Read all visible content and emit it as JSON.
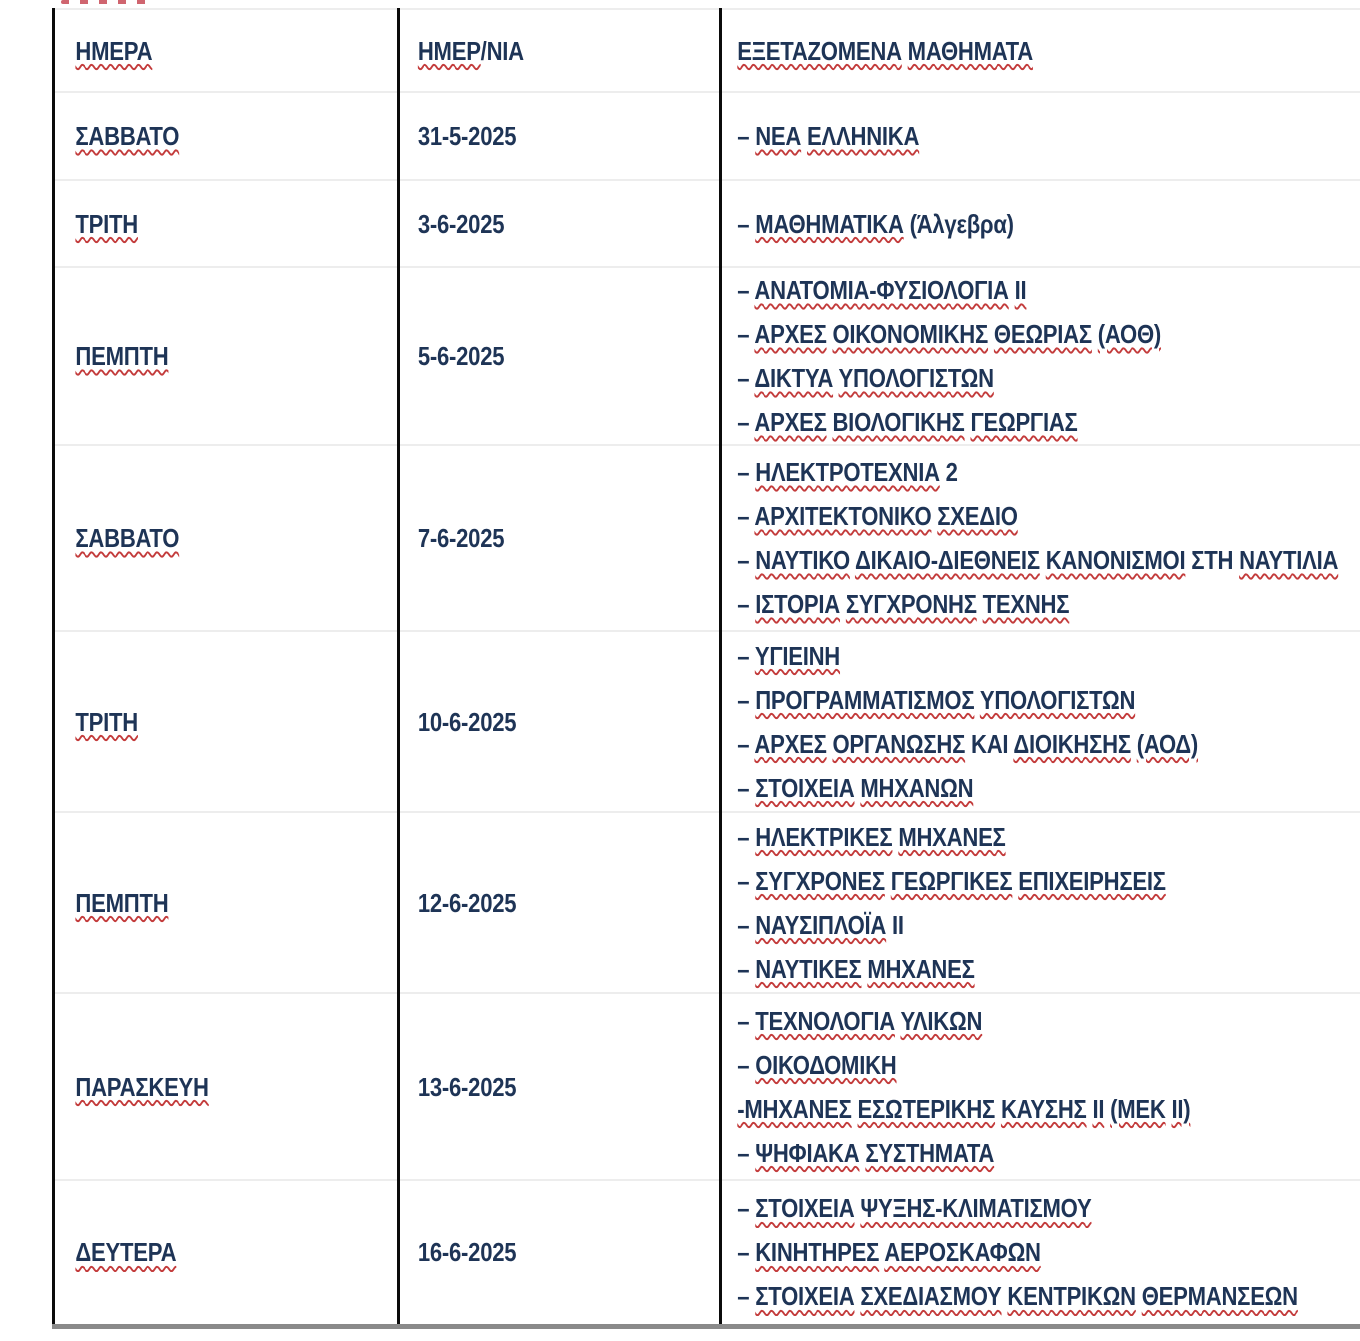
{
  "document": {
    "language": "el",
    "colors": {
      "text": "#1E3456",
      "misspell_underline": "#C33B3B",
      "grid_vertical": "#0B0B0B",
      "grid_horizontal": "#EDEDED",
      "table_bottom_border": "#8A8A8A",
      "page_background": "#FFFFFF"
    },
    "table": {
      "header": {
        "day": [
          [
            "ΗΜΕΡΑ",
            1
          ]
        ],
        "date": [
          [
            "ΗΜΕΡ",
            1
          ],
          [
            "/ΝΙΑ",
            0
          ]
        ],
        "subjects": [
          [
            "ΕΞΕΤΑΖΟΜΕΝΑ ΜΑΘΗΜΑΤΑ",
            1
          ]
        ]
      },
      "rows": [
        {
          "day": [
            [
              "ΣΑΒΒΑΤΟ",
              1
            ]
          ],
          "date": [
            [
              "31-5-2025",
              0
            ]
          ],
          "subjects": [
            [
              [
                "– ",
                0
              ],
              [
                "ΝΕΑ ΕΛΛΗΝΙΚΑ",
                1
              ]
            ]
          ]
        },
        {
          "day": [
            [
              "ΤΡΙΤΗ",
              1
            ]
          ],
          "date": [
            [
              "3-6-2025",
              0
            ]
          ],
          "subjects": [
            [
              [
                "– ",
                0
              ],
              [
                "ΜΑΘΗΜΑΤΙΚΑ",
                1
              ],
              [
                " (Άλγεβρα)",
                0
              ]
            ]
          ]
        },
        {
          "day": [
            [
              "ΠΕΜΠΤΗ",
              1
            ]
          ],
          "date": [
            [
              "5-6-2025",
              0
            ]
          ],
          "subjects": [
            [
              [
                "– ",
                0
              ],
              [
                "ΑΝΑΤΟΜΙΑ-ΦΥΣΙΟΛΟΓΙΑ ΙΙ",
                1
              ]
            ],
            [
              [
                "– ",
                0
              ],
              [
                "ΑΡΧΕΣ ΟΙΚΟΝΟΜΙΚΗΣ ΘΕΩΡΙΑΣ (ΑΟΘ)",
                1
              ]
            ],
            [
              [
                "– ",
                0
              ],
              [
                "ΔΙΚΤΥΑ ΥΠΟΛΟΓΙΣΤΩΝ",
                1
              ]
            ],
            [
              [
                "– ",
                0
              ],
              [
                "ΑΡΧΕΣ ΒΙΟΛΟΓΙΚΗΣ ΓΕΩΡΓΙΑΣ",
                1
              ]
            ]
          ]
        },
        {
          "day": [
            [
              "ΣΑΒΒΑΤΟ",
              1
            ]
          ],
          "date": [
            [
              "7-6-2025",
              0
            ]
          ],
          "subjects": [
            [
              [
                "– ",
                0
              ],
              [
                "ΗΛΕΚΤΡΟΤΕΧΝΙΑ",
                1
              ],
              [
                " 2",
                0
              ]
            ],
            [
              [
                "– ",
                0
              ],
              [
                "ΑΡΧΙΤΕΚΤΟΝΙΚΟ ΣΧΕΔΙΟ",
                1
              ]
            ],
            [
              [
                "– ",
                0
              ],
              [
                "ΝΑΥΤΙΚΟ ΔΙΚΑΙΟ-ΔΙΕΘΝΕΙΣ ΚΑΝΟΝΙΣΜΟΙ",
                1
              ],
              [
                " ΣΤΗ ",
                0
              ],
              [
                "ΝΑΥΤΙΛΙΑ",
                1
              ]
            ],
            [
              [
                "– ",
                0
              ],
              [
                "ΙΣΤΟΡΙΑ ΣΥΓΧΡΟΝΗΣ ΤΕΧΝΗΣ",
                1
              ]
            ]
          ]
        },
        {
          "day": [
            [
              "ΤΡΙΤΗ",
              1
            ]
          ],
          "date": [
            [
              "10-6-2025",
              0
            ]
          ],
          "subjects": [
            [
              [
                "– ",
                0
              ],
              [
                "ΥΓΙΕΙΝΗ",
                1
              ]
            ],
            [
              [
                "– ",
                0
              ],
              [
                "ΠΡΟΓΡΑΜΜΑΤΙΣΜΟΣ ΥΠΟΛΟΓΙΣΤΩΝ",
                1
              ]
            ],
            [
              [
                "– ",
                0
              ],
              [
                "ΑΡΧΕΣ ΟΡΓΑΝΩΣΗΣ",
                1
              ],
              [
                " ΚΑΙ ",
                0
              ],
              [
                "ΔΙΟΙΚΗΣΗΣ (ΑΟΔ)",
                1
              ]
            ],
            [
              [
                "– ",
                0
              ],
              [
                "ΣΤΟΙΧΕΙΑ ΜΗΧΑΝΩΝ",
                1
              ]
            ]
          ]
        },
        {
          "day": [
            [
              "ΠΕΜΠΤΗ",
              1
            ]
          ],
          "date": [
            [
              "12-6-2025",
              0
            ]
          ],
          "subjects": [
            [
              [
                "– ",
                0
              ],
              [
                "ΗΛΕΚΤΡΙΚΕΣ ΜΗΧΑΝΕΣ",
                1
              ]
            ],
            [
              [
                "– ",
                0
              ],
              [
                "ΣΥΓΧΡΟΝΕΣ ΓΕΩΡΓΙΚΕΣ ΕΠΙΧΕΙΡΗΣΕΙΣ",
                1
              ]
            ],
            [
              [
                "– ",
                0
              ],
              [
                "ΝΑΥΣΙΠΛΟΪΑ",
                1
              ],
              [
                " ΙΙ",
                0
              ]
            ],
            [
              [
                "– ",
                0
              ],
              [
                "ΝΑΥΤΙΚΕΣ ΜΗΧΑΝΕΣ",
                1
              ]
            ]
          ]
        },
        {
          "day": [
            [
              "ΠΑΡΑΣΚΕΥΗ",
              1
            ]
          ],
          "date": [
            [
              "13-6-2025",
              0
            ]
          ],
          "subjects": [
            [
              [
                "– ",
                0
              ],
              [
                "ΤΕΧΝΟΛΟΓΙΑ ΥΛΙΚΩΝ",
                1
              ]
            ],
            [
              [
                "– ",
                0
              ],
              [
                "ΟΙΚΟΔΟΜΙΚΗ",
                1
              ]
            ],
            [
              [
                "-ΜΗΧΑΝΕΣ ΕΣΩΤΕΡΙΚΗΣ ΚΑΥΣΗΣ ΙΙ (ΜΕΚ ΙΙ)",
                1
              ]
            ],
            [
              [
                "– ",
                0
              ],
              [
                "ΨΗΦΙΑΚΑ ΣΥΣΤΗΜΑΤΑ",
                1
              ]
            ]
          ]
        },
        {
          "day": [
            [
              "ΔΕΥΤΕΡΑ",
              1
            ]
          ],
          "date": [
            [
              "16-6-2025",
              0
            ]
          ],
          "subjects": [
            [
              [
                "– ",
                0
              ],
              [
                "ΣΤΟΙΧΕΙΑ ΨΥΞΗΣ-ΚΛΙΜΑΤΙΣΜΟΥ",
                1
              ]
            ],
            [
              [
                "– ",
                0
              ],
              [
                "ΚΙΝΗΤΗΡΕΣ ΑΕΡΟΣΚΑΦΩΝ",
                1
              ]
            ],
            [
              [
                "– ",
                0
              ],
              [
                "ΣΤΟΙΧΕΙΑ ΣΧΕΔΙΑΣΜΟΥ ΚΕΝΤΡΙΚΩΝ ΘΕΡΜΑΝΣΕΩΝ",
                1
              ]
            ]
          ]
        }
      ]
    }
  }
}
